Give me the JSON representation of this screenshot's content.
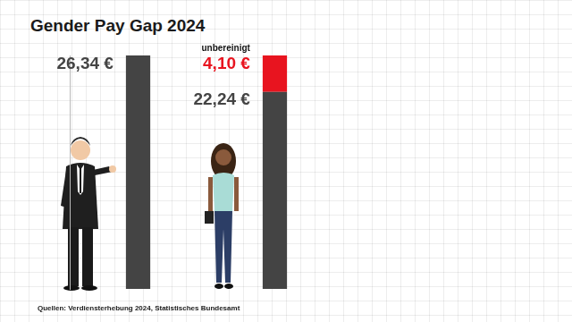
{
  "chart_data": {
    "type": "bar",
    "title": "Gender Pay Gap 2024",
    "source": "Quellen: Verdiensterhebung 2024, Statistisches Bundesamt",
    "categories": [
      null,
      null
    ],
    "series": [
      {
        "color": "#444444",
        "values": [
          26.34,
          22.24
        ],
        "value_labels": [
          "26,34 €",
          "22,24 €"
        ]
      },
      {
        "name": "unbereinigt",
        "color": "#e8141f",
        "values": [
          null,
          4.1
        ],
        "value_labels": [
          null,
          "4,10 €"
        ]
      }
    ],
    "stacked": true,
    "data_labels": true,
    "tick_labels": false,
    "grid": false,
    "ylim": [
      0,
      26.34
    ]
  }
}
